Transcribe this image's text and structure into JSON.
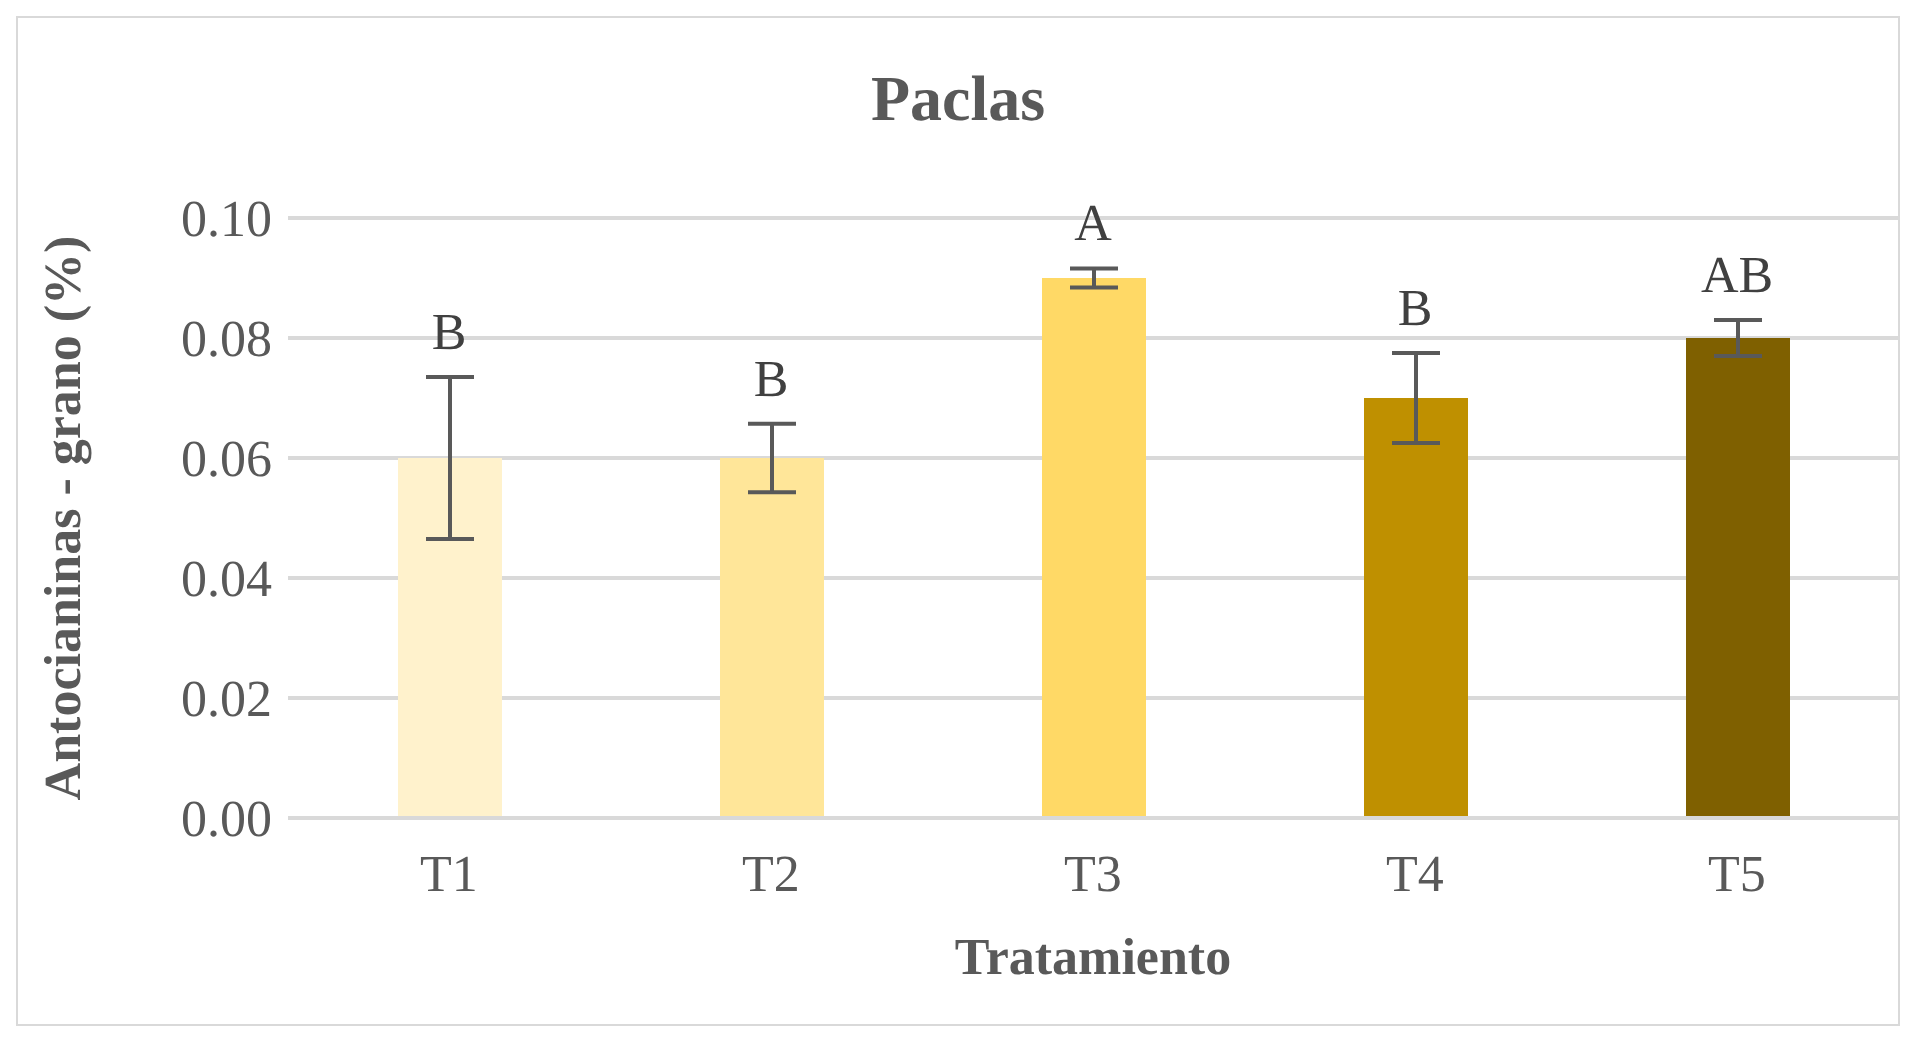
{
  "chart_data": {
    "type": "bar",
    "title": "Paclas",
    "xlabel": "Tratamiento",
    "ylabel": "Antocianinas - grano (%)",
    "categories": [
      "T1",
      "T2",
      "T3",
      "T4",
      "T5"
    ],
    "values": [
      0.06,
      0.06,
      0.09,
      0.07,
      0.08
    ],
    "colors": [
      "#fff2cc",
      "#ffe699",
      "#ffd966",
      "#bf9000",
      "#7f6000"
    ],
    "errors": [
      0.0135,
      0.0057,
      0.0016,
      0.0075,
      0.003
    ],
    "ylim": [
      0,
      0.1
    ],
    "yticks": [
      {
        "value": 0,
        "label": "0.00"
      },
      {
        "value": 0.02,
        "label": "0.02"
      },
      {
        "value": 0.04,
        "label": "0.04"
      },
      {
        "value": 0.06,
        "label": "0.06"
      },
      {
        "value": 0.08,
        "label": "0.08"
      },
      {
        "value": 0.1,
        "label": "0.10"
      }
    ],
    "grid": "y",
    "annotations": [
      {
        "text": "B",
        "x": "T1",
        "y": 0.0735
      },
      {
        "text": "B",
        "x": "T2",
        "y": 0.0657
      },
      {
        "text": "A",
        "x": "T3",
        "y": 0.0916
      },
      {
        "text": "B",
        "x": "T4",
        "y": 0.0775
      },
      {
        "text": "AB",
        "x": "T5",
        "y": 0.083
      }
    ]
  }
}
